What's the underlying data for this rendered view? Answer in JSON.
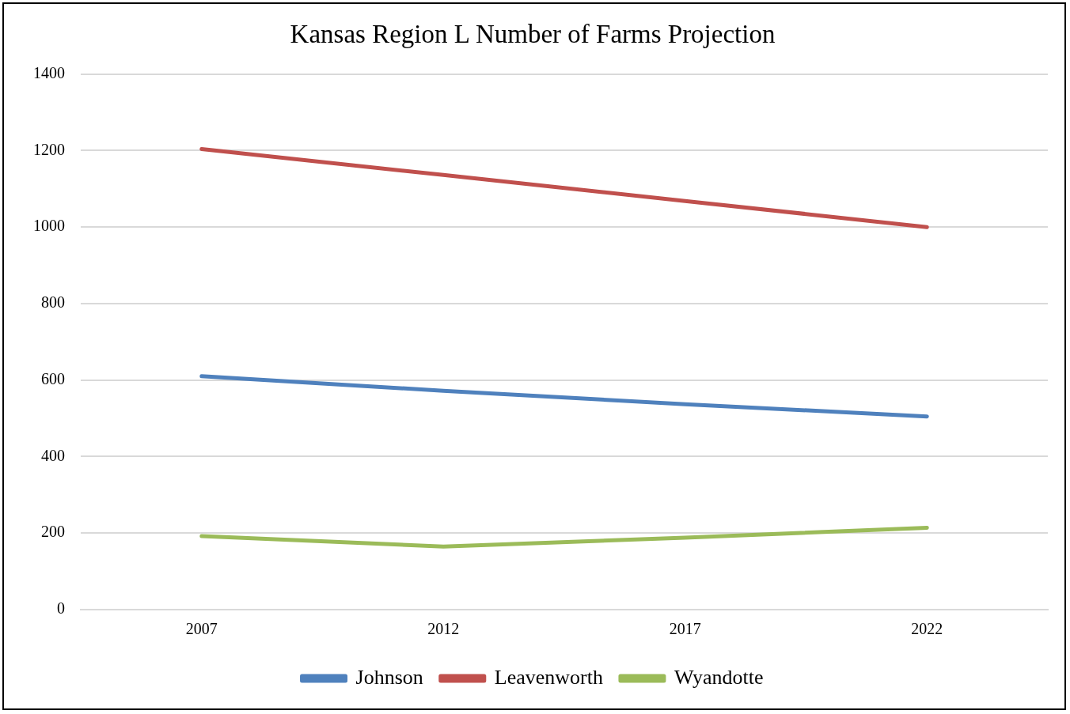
{
  "chart_data": {
    "type": "line",
    "title": "Kansas Region L Number of Farms Projection",
    "categories": [
      "2007",
      "2012",
      "2017",
      "2022"
    ],
    "series": [
      {
        "name": "Johnson",
        "color": "#4f81bd",
        "values": [
          610,
          572,
          537,
          505
        ]
      },
      {
        "name": "Leavenworth",
        "color": "#c0504d",
        "values": [
          1204,
          1136,
          1068,
          1000
        ]
      },
      {
        "name": "Wyandotte",
        "color": "#9bbb59",
        "values": [
          192,
          165,
          188,
          214
        ]
      }
    ],
    "ylim": [
      0,
      1400
    ],
    "yticks": [
      0,
      200,
      400,
      600,
      800,
      1000,
      1200,
      1400
    ],
    "grid": "y",
    "legend": "bottom",
    "marker": "none",
    "line_style": "solid"
  }
}
